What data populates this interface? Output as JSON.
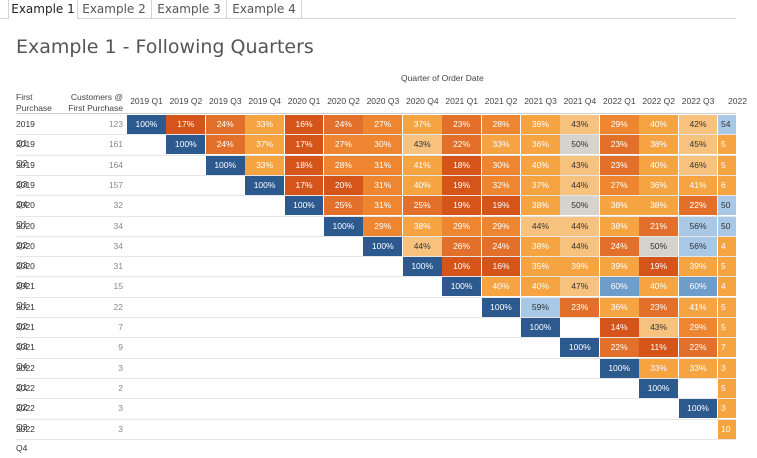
{
  "tabs": [
    {
      "label": "Example 1"
    },
    {
      "label": "Example 2"
    },
    {
      "label": "Example 3"
    },
    {
      "label": "Example 4"
    }
  ],
  "title": "Example 1 - Following Quarters",
  "axis_title": "Quarter of Order Date",
  "row_header": {
    "line1": "First",
    "line2": "Purchase"
  },
  "customers_header": {
    "line1": "Customers @",
    "line2": "First Purchase"
  },
  "columns": [
    "2019 Q1",
    "2019 Q2",
    "2019 Q3",
    "2019 Q4",
    "2020 Q1",
    "2020 Q2",
    "2020 Q3",
    "2020 Q4",
    "2021 Q1",
    "2021 Q2",
    "2021 Q3",
    "2021 Q4",
    "2022 Q1",
    "2022 Q2",
    "2022 Q3",
    "2022"
  ],
  "rows": [
    {
      "label": "2019 Q1",
      "customers": "123",
      "start": 0,
      "values": [
        "100%",
        "17%",
        "24%",
        "33%",
        "16%",
        "24%",
        "27%",
        "37%",
        "23%",
        "28%",
        "36%",
        "43%",
        "29%",
        "40%",
        "42%",
        "54"
      ]
    },
    {
      "label": "2019 Q2",
      "customers": "161",
      "start": 1,
      "values": [
        "100%",
        "24%",
        "37%",
        "17%",
        "27%",
        "30%",
        "43%",
        "22%",
        "33%",
        "36%",
        "50%",
        "23%",
        "38%",
        "45%",
        "5"
      ]
    },
    {
      "label": "2019 Q3",
      "customers": "164",
      "start": 2,
      "values": [
        "100%",
        "33%",
        "18%",
        "28%",
        "31%",
        "41%",
        "18%",
        "30%",
        "40%",
        "43%",
        "23%",
        "40%",
        "46%",
        "5"
      ]
    },
    {
      "label": "2019 Q4",
      "customers": "157",
      "start": 3,
      "values": [
        "100%",
        "17%",
        "20%",
        "31%",
        "40%",
        "19%",
        "32%",
        "37%",
        "44%",
        "27%",
        "36%",
        "41%",
        "6"
      ]
    },
    {
      "label": "2020 Q1",
      "customers": "32",
      "start": 4,
      "values": [
        "100%",
        "25%",
        "31%",
        "25%",
        "19%",
        "19%",
        "38%",
        "50%",
        "38%",
        "38%",
        "22%",
        "50"
      ]
    },
    {
      "label": "2020 Q2",
      "customers": "34",
      "start": 5,
      "values": [
        "100%",
        "29%",
        "38%",
        "29%",
        "29%",
        "44%",
        "44%",
        "38%",
        "21%",
        "56%",
        "50"
      ]
    },
    {
      "label": "2020 Q3",
      "customers": "34",
      "start": 6,
      "values": [
        "100%",
        "44%",
        "26%",
        "24%",
        "38%",
        "44%",
        "24%",
        "50%",
        "56%",
        "4"
      ]
    },
    {
      "label": "2020 Q4",
      "customers": "31",
      "start": 7,
      "values": [
        "100%",
        "10%",
        "16%",
        "35%",
        "39%",
        "39%",
        "19%",
        "39%",
        "5"
      ]
    },
    {
      "label": "2021 Q1",
      "customers": "15",
      "start": 8,
      "values": [
        "100%",
        "40%",
        "40%",
        "47%",
        "60%",
        "40%",
        "60%",
        "4"
      ]
    },
    {
      "label": "2021 Q2",
      "customers": "22",
      "start": 9,
      "values": [
        "100%",
        "59%",
        "23%",
        "36%",
        "23%",
        "41%",
        "5"
      ]
    },
    {
      "label": "2021 Q3",
      "customers": "7",
      "start": 10,
      "values": [
        "100%",
        "",
        "14%",
        "43%",
        "29%",
        "5"
      ]
    },
    {
      "label": "2021 Q4",
      "customers": "9",
      "start": 11,
      "values": [
        "100%",
        "22%",
        "11%",
        "22%",
        "7"
      ]
    },
    {
      "label": "2022 Q1",
      "customers": "3",
      "start": 12,
      "values": [
        "100%",
        "33%",
        "33%",
        "3"
      ]
    },
    {
      "label": "2022 Q2",
      "customers": "2",
      "start": 13,
      "values": [
        "100%",
        "",
        "5"
      ]
    },
    {
      "label": "2022 Q3",
      "customers": "3",
      "start": 14,
      "values": [
        "100%",
        "3"
      ]
    },
    {
      "label": "2022 Q4",
      "customers": "3",
      "start": 15,
      "values": [
        "10"
      ]
    }
  ],
  "colors": {
    "full": "#2c5a8f",
    "blue_mid": "#6f9dc9",
    "blue_light": "#a8c8e6",
    "neutral": "#d6d2cc",
    "peach": "#f7c27e",
    "orange_light": "#f5a441",
    "orange": "#ee8530",
    "orange_dark": "#e2702a",
    "red_orange": "#d4541a"
  }
}
